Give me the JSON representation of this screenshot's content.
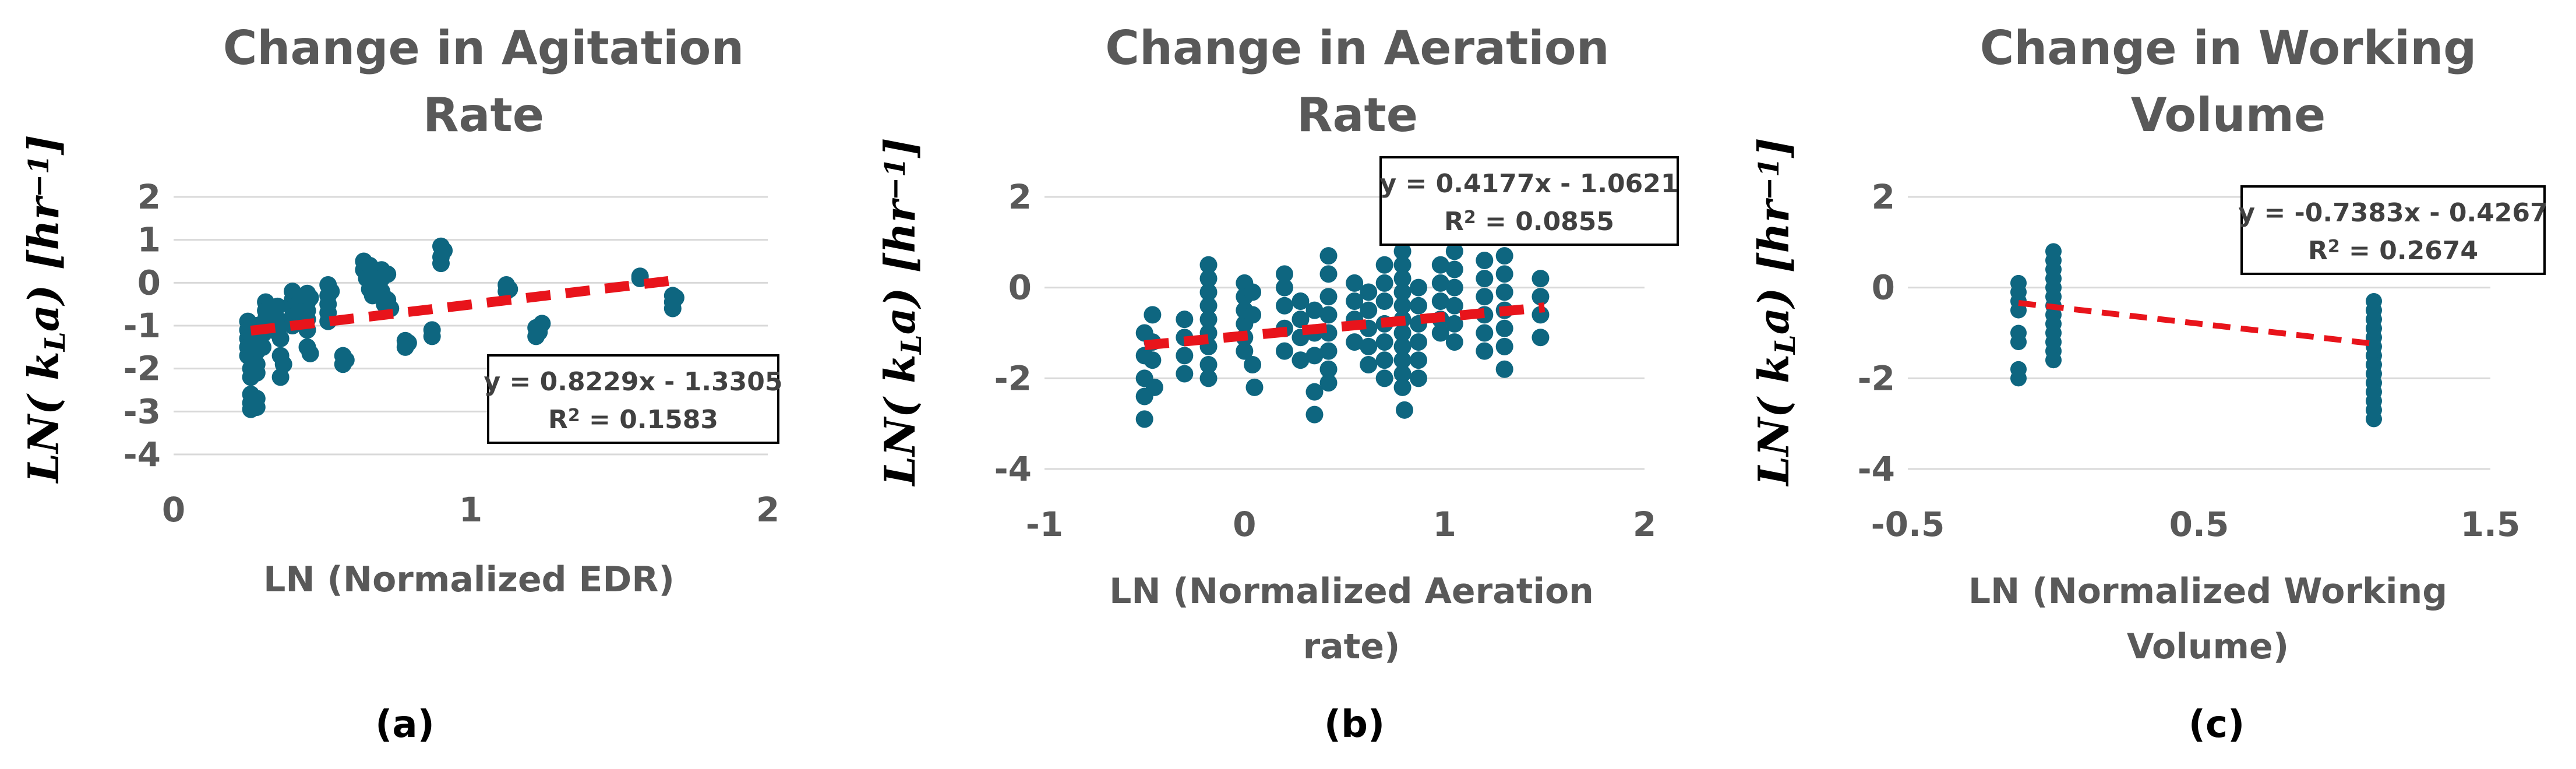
{
  "chart_data": [
    {
      "type": "scatter",
      "title": "Change in Agitation Rate",
      "title_lines": [
        "Change in Agitation",
        "Rate"
      ],
      "xlabel": "LN (Normalized EDR)",
      "xlabel_lines": [
        "LN (Normalized EDR)"
      ],
      "ylabel": "LN( k_L a) [hr^-1]",
      "ylabel_base": "LN( k",
      "ylabel_sub": "L",
      "ylabel_mid": "a) [hr",
      "ylabel_sup": "−1",
      "ylabel_end": "]",
      "xlim": [
        0,
        2
      ],
      "ylim": [
        -4,
        2
      ],
      "xticks": [
        0,
        1,
        2
      ],
      "yticks": [
        2,
        1,
        0,
        -1,
        -2,
        -3,
        -4
      ],
      "xtick_labels": [
        "0",
        "1",
        "2"
      ],
      "ytick_labels": [
        "2",
        "1",
        "0",
        "-1",
        "-2",
        "-3",
        "-4"
      ],
      "trendline": {
        "slope": 0.8229,
        "intercept": -1.3305,
        "x_range": [
          0.26,
          1.68
        ]
      },
      "equation": "y = 0.8229x - 1.3305",
      "r2_label": "R",
      "r2_sup": "2",
      "r2_value": " = 0.1583",
      "panel_label": "(a)",
      "points": [
        [
          0.25,
          -0.9
        ],
        [
          0.25,
          -1.1
        ],
        [
          0.25,
          -1.3
        ],
        [
          0.25,
          -1.5
        ],
        [
          0.25,
          -1.7
        ],
        [
          0.26,
          -2.0
        ],
        [
          0.26,
          -2.2
        ],
        [
          0.26,
          -2.6
        ],
        [
          0.26,
          -2.8
        ],
        [
          0.26,
          -2.95
        ],
        [
          0.28,
          -1.0
        ],
        [
          0.28,
          -1.3
        ],
        [
          0.28,
          -1.6
        ],
        [
          0.28,
          -1.9
        ],
        [
          0.28,
          -2.1
        ],
        [
          0.28,
          -2.7
        ],
        [
          0.28,
          -2.9
        ],
        [
          0.3,
          -1.2
        ],
        [
          0.3,
          -1.5
        ],
        [
          0.31,
          -0.45
        ],
        [
          0.31,
          -0.65
        ],
        [
          0.31,
          -0.85
        ],
        [
          0.31,
          -1.05
        ],
        [
          0.33,
          -0.6
        ],
        [
          0.33,
          -0.9
        ],
        [
          0.33,
          -1.1
        ],
        [
          0.34,
          -0.75
        ],
        [
          0.35,
          -0.55
        ],
        [
          0.35,
          -0.85
        ],
        [
          0.35,
          -1.0
        ],
        [
          0.36,
          -1.3
        ],
        [
          0.36,
          -1.7
        ],
        [
          0.36,
          -2.2
        ],
        [
          0.37,
          -0.95
        ],
        [
          0.37,
          -1.9
        ],
        [
          0.4,
          -0.2
        ],
        [
          0.4,
          -0.4
        ],
        [
          0.4,
          -0.6
        ],
        [
          0.4,
          -0.8
        ],
        [
          0.4,
          -1.0
        ],
        [
          0.41,
          -0.3
        ],
        [
          0.42,
          -0.5
        ],
        [
          0.42,
          -0.7
        ],
        [
          0.45,
          -0.25
        ],
        [
          0.45,
          -0.45
        ],
        [
          0.45,
          -0.65
        ],
        [
          0.45,
          -0.85
        ],
        [
          0.45,
          -1.1
        ],
        [
          0.45,
          -1.5
        ],
        [
          0.46,
          -1.65
        ],
        [
          0.46,
          -0.35
        ],
        [
          0.52,
          -0.05
        ],
        [
          0.52,
          -0.3
        ],
        [
          0.52,
          -0.5
        ],
        [
          0.52,
          -0.7
        ],
        [
          0.52,
          -0.9
        ],
        [
          0.53,
          -0.2
        ],
        [
          0.57,
          -1.7
        ],
        [
          0.57,
          -1.9
        ],
        [
          0.58,
          -1.8
        ],
        [
          0.64,
          0.5
        ],
        [
          0.64,
          0.3
        ],
        [
          0.65,
          0.1
        ],
        [
          0.66,
          -0.15
        ],
        [
          0.66,
          0.4
        ],
        [
          0.67,
          -0.3
        ],
        [
          0.7,
          0.3
        ],
        [
          0.7,
          0.1
        ],
        [
          0.7,
          -0.2
        ],
        [
          0.71,
          -0.35
        ],
        [
          0.71,
          -0.5
        ],
        [
          0.72,
          0.2
        ],
        [
          0.72,
          -0.4
        ],
        [
          0.73,
          -0.6
        ],
        [
          0.78,
          -1.35
        ],
        [
          0.78,
          -1.5
        ],
        [
          0.79,
          -1.4
        ],
        [
          0.87,
          -1.25
        ],
        [
          0.87,
          -1.1
        ],
        [
          0.9,
          0.85
        ],
        [
          0.9,
          0.6
        ],
        [
          0.9,
          0.45
        ],
        [
          0.91,
          0.75
        ],
        [
          1.12,
          -0.05
        ],
        [
          1.12,
          -0.2
        ],
        [
          1.13,
          -0.15
        ],
        [
          1.22,
          -1.25
        ],
        [
          1.22,
          -1.05
        ],
        [
          1.23,
          -1.15
        ],
        [
          1.24,
          -0.95
        ],
        [
          1.57,
          0.15
        ],
        [
          1.57,
          0.1
        ],
        [
          1.68,
          -0.3
        ],
        [
          1.68,
          -0.45
        ],
        [
          1.68,
          -0.6
        ],
        [
          1.69,
          -0.35
        ]
      ]
    },
    {
      "type": "scatter",
      "title": "Change in Aeration Rate",
      "title_lines": [
        "Change in Aeration",
        "Rate"
      ],
      "xlabel": "LN (Normalized Aeration rate)",
      "xlabel_lines": [
        "LN (Normalized Aeration",
        "rate)"
      ],
      "ylabel": "LN( k_L a) [hr^-1]",
      "ylabel_base": "LN( k",
      "ylabel_sub": "L",
      "ylabel_mid": "a) [hr",
      "ylabel_sup": "−1",
      "ylabel_end": "]",
      "xlim": [
        -1,
        2
      ],
      "ylim": [
        -4,
        2
      ],
      "xticks": [
        -1,
        0,
        1,
        2
      ],
      "yticks": [
        2,
        0,
        -2,
        -4
      ],
      "xtick_labels": [
        "-1",
        "0",
        "1",
        "2"
      ],
      "ytick_labels": [
        "2",
        "0",
        "-2",
        "-4"
      ],
      "trendline": {
        "slope": 0.4177,
        "intercept": -1.0621,
        "x_range": [
          -0.5,
          1.5
        ]
      },
      "equation": "y = 0.4177x - 1.0621",
      "r2_label": "R",
      "r2_sup": "2",
      "r2_value": " = 0.0855",
      "panel_label": "(b)",
      "points": [
        [
          -0.5,
          -1.0
        ],
        [
          -0.5,
          -1.5
        ],
        [
          -0.5,
          -2.0
        ],
        [
          -0.5,
          -2.4
        ],
        [
          -0.5,
          -2.9
        ],
        [
          -0.46,
          -0.6
        ],
        [
          -0.46,
          -1.2
        ],
        [
          -0.46,
          -1.6
        ],
        [
          -0.45,
          -2.2
        ],
        [
          -0.3,
          -0.7
        ],
        [
          -0.3,
          -1.1
        ],
        [
          -0.3,
          -1.5
        ],
        [
          -0.3,
          -1.9
        ],
        [
          -0.18,
          0.5
        ],
        [
          -0.18,
          0.2
        ],
        [
          -0.18,
          -0.1
        ],
        [
          -0.18,
          -0.4
        ],
        [
          -0.18,
          -0.7
        ],
        [
          -0.18,
          -1.0
        ],
        [
          -0.18,
          -1.3
        ],
        [
          -0.18,
          -1.7
        ],
        [
          -0.18,
          -2.0
        ],
        [
          0.0,
          0.1
        ],
        [
          0.0,
          -0.2
        ],
        [
          0.0,
          -0.5
        ],
        [
          0.0,
          -0.8
        ],
        [
          0.0,
          -1.1
        ],
        [
          0.0,
          -1.4
        ],
        [
          0.04,
          -0.1
        ],
        [
          0.04,
          -0.6
        ],
        [
          0.04,
          -1.7
        ],
        [
          0.05,
          -2.2
        ],
        [
          0.2,
          0.3
        ],
        [
          0.2,
          0.0
        ],
        [
          0.2,
          -0.4
        ],
        [
          0.2,
          -0.9
        ],
        [
          0.2,
          -1.4
        ],
        [
          0.28,
          -0.3
        ],
        [
          0.28,
          -0.7
        ],
        [
          0.28,
          -1.1
        ],
        [
          0.28,
          -1.6
        ],
        [
          0.35,
          -0.5
        ],
        [
          0.35,
          -1.0
        ],
        [
          0.35,
          -1.5
        ],
        [
          0.35,
          -2.3
        ],
        [
          0.35,
          -2.8
        ],
        [
          0.42,
          0.7
        ],
        [
          0.42,
          0.3
        ],
        [
          0.42,
          -0.2
        ],
        [
          0.42,
          -0.6
        ],
        [
          0.42,
          -1.0
        ],
        [
          0.42,
          -1.4
        ],
        [
          0.42,
          -1.8
        ],
        [
          0.42,
          -2.1
        ],
        [
          0.55,
          0.1
        ],
        [
          0.55,
          -0.3
        ],
        [
          0.55,
          -0.7
        ],
        [
          0.55,
          -1.2
        ],
        [
          0.62,
          -0.1
        ],
        [
          0.62,
          -0.5
        ],
        [
          0.62,
          -0.9
        ],
        [
          0.62,
          -1.3
        ],
        [
          0.62,
          -1.7
        ],
        [
          0.7,
          0.5
        ],
        [
          0.7,
          0.1
        ],
        [
          0.7,
          -0.3
        ],
        [
          0.7,
          -0.8
        ],
        [
          0.7,
          -1.2
        ],
        [
          0.7,
          -1.6
        ],
        [
          0.7,
          -2.0
        ],
        [
          0.79,
          0.8
        ],
        [
          0.79,
          0.5
        ],
        [
          0.79,
          0.2
        ],
        [
          0.79,
          -0.1
        ],
        [
          0.79,
          -0.4
        ],
        [
          0.79,
          -0.7
        ],
        [
          0.79,
          -1.0
        ],
        [
          0.79,
          -1.3
        ],
        [
          0.79,
          -1.6
        ],
        [
          0.79,
          -1.9
        ],
        [
          0.79,
          -2.2
        ],
        [
          0.8,
          -2.7
        ],
        [
          0.87,
          0.0
        ],
        [
          0.87,
          -0.4
        ],
        [
          0.87,
          -0.8
        ],
        [
          0.87,
          -1.2
        ],
        [
          0.87,
          -1.6
        ],
        [
          0.87,
          -2.0
        ],
        [
          0.98,
          0.5
        ],
        [
          0.98,
          0.1
        ],
        [
          0.98,
          -0.3
        ],
        [
          0.98,
          -0.7
        ],
        [
          0.98,
          -1.0
        ],
        [
          1.05,
          0.8
        ],
        [
          1.05,
          0.4
        ],
        [
          1.05,
          0.0
        ],
        [
          1.05,
          -0.4
        ],
        [
          1.05,
          -0.8
        ],
        [
          1.05,
          -1.2
        ],
        [
          1.2,
          0.6
        ],
        [
          1.2,
          0.2
        ],
        [
          1.2,
          -0.2
        ],
        [
          1.2,
          -0.6
        ],
        [
          1.2,
          -1.0
        ],
        [
          1.2,
          -1.4
        ],
        [
          1.3,
          0.7
        ],
        [
          1.3,
          0.3
        ],
        [
          1.3,
          -0.1
        ],
        [
          1.3,
          -0.5
        ],
        [
          1.3,
          -0.9
        ],
        [
          1.3,
          -1.3
        ],
        [
          1.3,
          -1.8
        ],
        [
          1.48,
          0.2
        ],
        [
          1.48,
          -0.2
        ],
        [
          1.48,
          -0.6
        ],
        [
          1.48,
          -1.1
        ]
      ]
    },
    {
      "type": "scatter",
      "title": "Change in Working Volume",
      "title_lines": [
        "Change in Working",
        "Volume"
      ],
      "xlabel": "LN (Normalized Working Volume)",
      "xlabel_lines": [
        "LN (Normalized Working",
        "Volume)"
      ],
      "ylabel": "LN( k_L a) [hr^-1]",
      "ylabel_base": "LN( k",
      "ylabel_sub": "L",
      "ylabel_mid": "a) [hr",
      "ylabel_sup": "−1",
      "ylabel_end": "]",
      "xlim": [
        -0.5,
        1.5
      ],
      "ylim": [
        -4,
        2
      ],
      "xticks": [
        -0.5,
        0.5,
        1.5
      ],
      "yticks": [
        2,
        0,
        -2,
        -4
      ],
      "xtick_labels": [
        "-0.5",
        "0.5",
        "1.5"
      ],
      "ytick_labels": [
        "2",
        "0",
        "-2",
        "-4"
      ],
      "trendline": {
        "slope": -0.7383,
        "intercept": -0.4267,
        "x_range": [
          -0.12,
          1.1
        ]
      },
      "equation": "y = -0.7383x - 0.4267",
      "r2_label": "R",
      "r2_sup": "2",
      "r2_value": " = 0.2674",
      "panel_label": "(c)",
      "points": [
        [
          -0.12,
          0.1
        ],
        [
          -0.12,
          -0.1
        ],
        [
          -0.12,
          -0.3
        ],
        [
          -0.12,
          -0.5
        ],
        [
          -0.12,
          -1.0
        ],
        [
          -0.12,
          -1.2
        ],
        [
          -0.12,
          -1.8
        ],
        [
          -0.12,
          -2.0
        ],
        [
          0.0,
          0.8
        ],
        [
          0.0,
          0.6
        ],
        [
          0.0,
          0.4
        ],
        [
          0.0,
          0.2
        ],
        [
          0.0,
          0.0
        ],
        [
          0.0,
          -0.2
        ],
        [
          0.0,
          -0.4
        ],
        [
          0.0,
          -0.6
        ],
        [
          0.0,
          -0.8
        ],
        [
          0.0,
          -1.0
        ],
        [
          0.0,
          -1.2
        ],
        [
          0.0,
          -1.4
        ],
        [
          0.0,
          -1.6
        ],
        [
          1.1,
          -0.3
        ],
        [
          1.1,
          -0.5
        ],
        [
          1.1,
          -0.7
        ],
        [
          1.1,
          -0.9
        ],
        [
          1.1,
          -1.1
        ],
        [
          1.1,
          -1.3
        ],
        [
          1.1,
          -1.5
        ],
        [
          1.1,
          -1.7
        ],
        [
          1.1,
          -1.9
        ],
        [
          1.1,
          -2.1
        ],
        [
          1.1,
          -2.3
        ],
        [
          1.1,
          -2.5
        ],
        [
          1.1,
          -2.7
        ],
        [
          1.1,
          -2.9
        ]
      ]
    }
  ]
}
